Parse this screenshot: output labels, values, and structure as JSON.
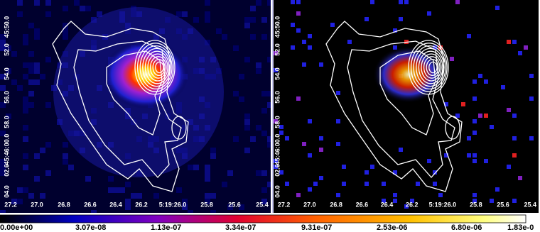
{
  "left_panel": {
    "y_labels": [
      "45:50.0",
      "52.0",
      "54.0",
      "56.0",
      "58.0",
      "-45:46:00.0",
      "02.0",
      "04.0"
    ],
    "x_labels": [
      "27.2",
      "27.0",
      "26.8",
      "26.6",
      "26.4",
      "26.2",
      "5:19:26.0",
      "25.8",
      "25.6",
      "25.4"
    ]
  },
  "right_panel": {
    "y_labels": [
      "45:50.0",
      "52.0",
      "54.0",
      "56.0",
      "58.0",
      "-45:46:00.0",
      "02.0",
      "04.0"
    ],
    "x_labels": [
      "27.2",
      "27.0",
      "26.8",
      "26.6",
      "26.4",
      "26.2",
      "5:19:26.0",
      "25.8",
      "25.6",
      "25.4"
    ]
  },
  "colorbar": {
    "labels": [
      "0.00e+00",
      "3.07e-08",
      "1.13e-07",
      "3.34e-07",
      "9.31e-07",
      "2.53e-06",
      "6.80e-06",
      "1.83e-0"
    ]
  }
}
